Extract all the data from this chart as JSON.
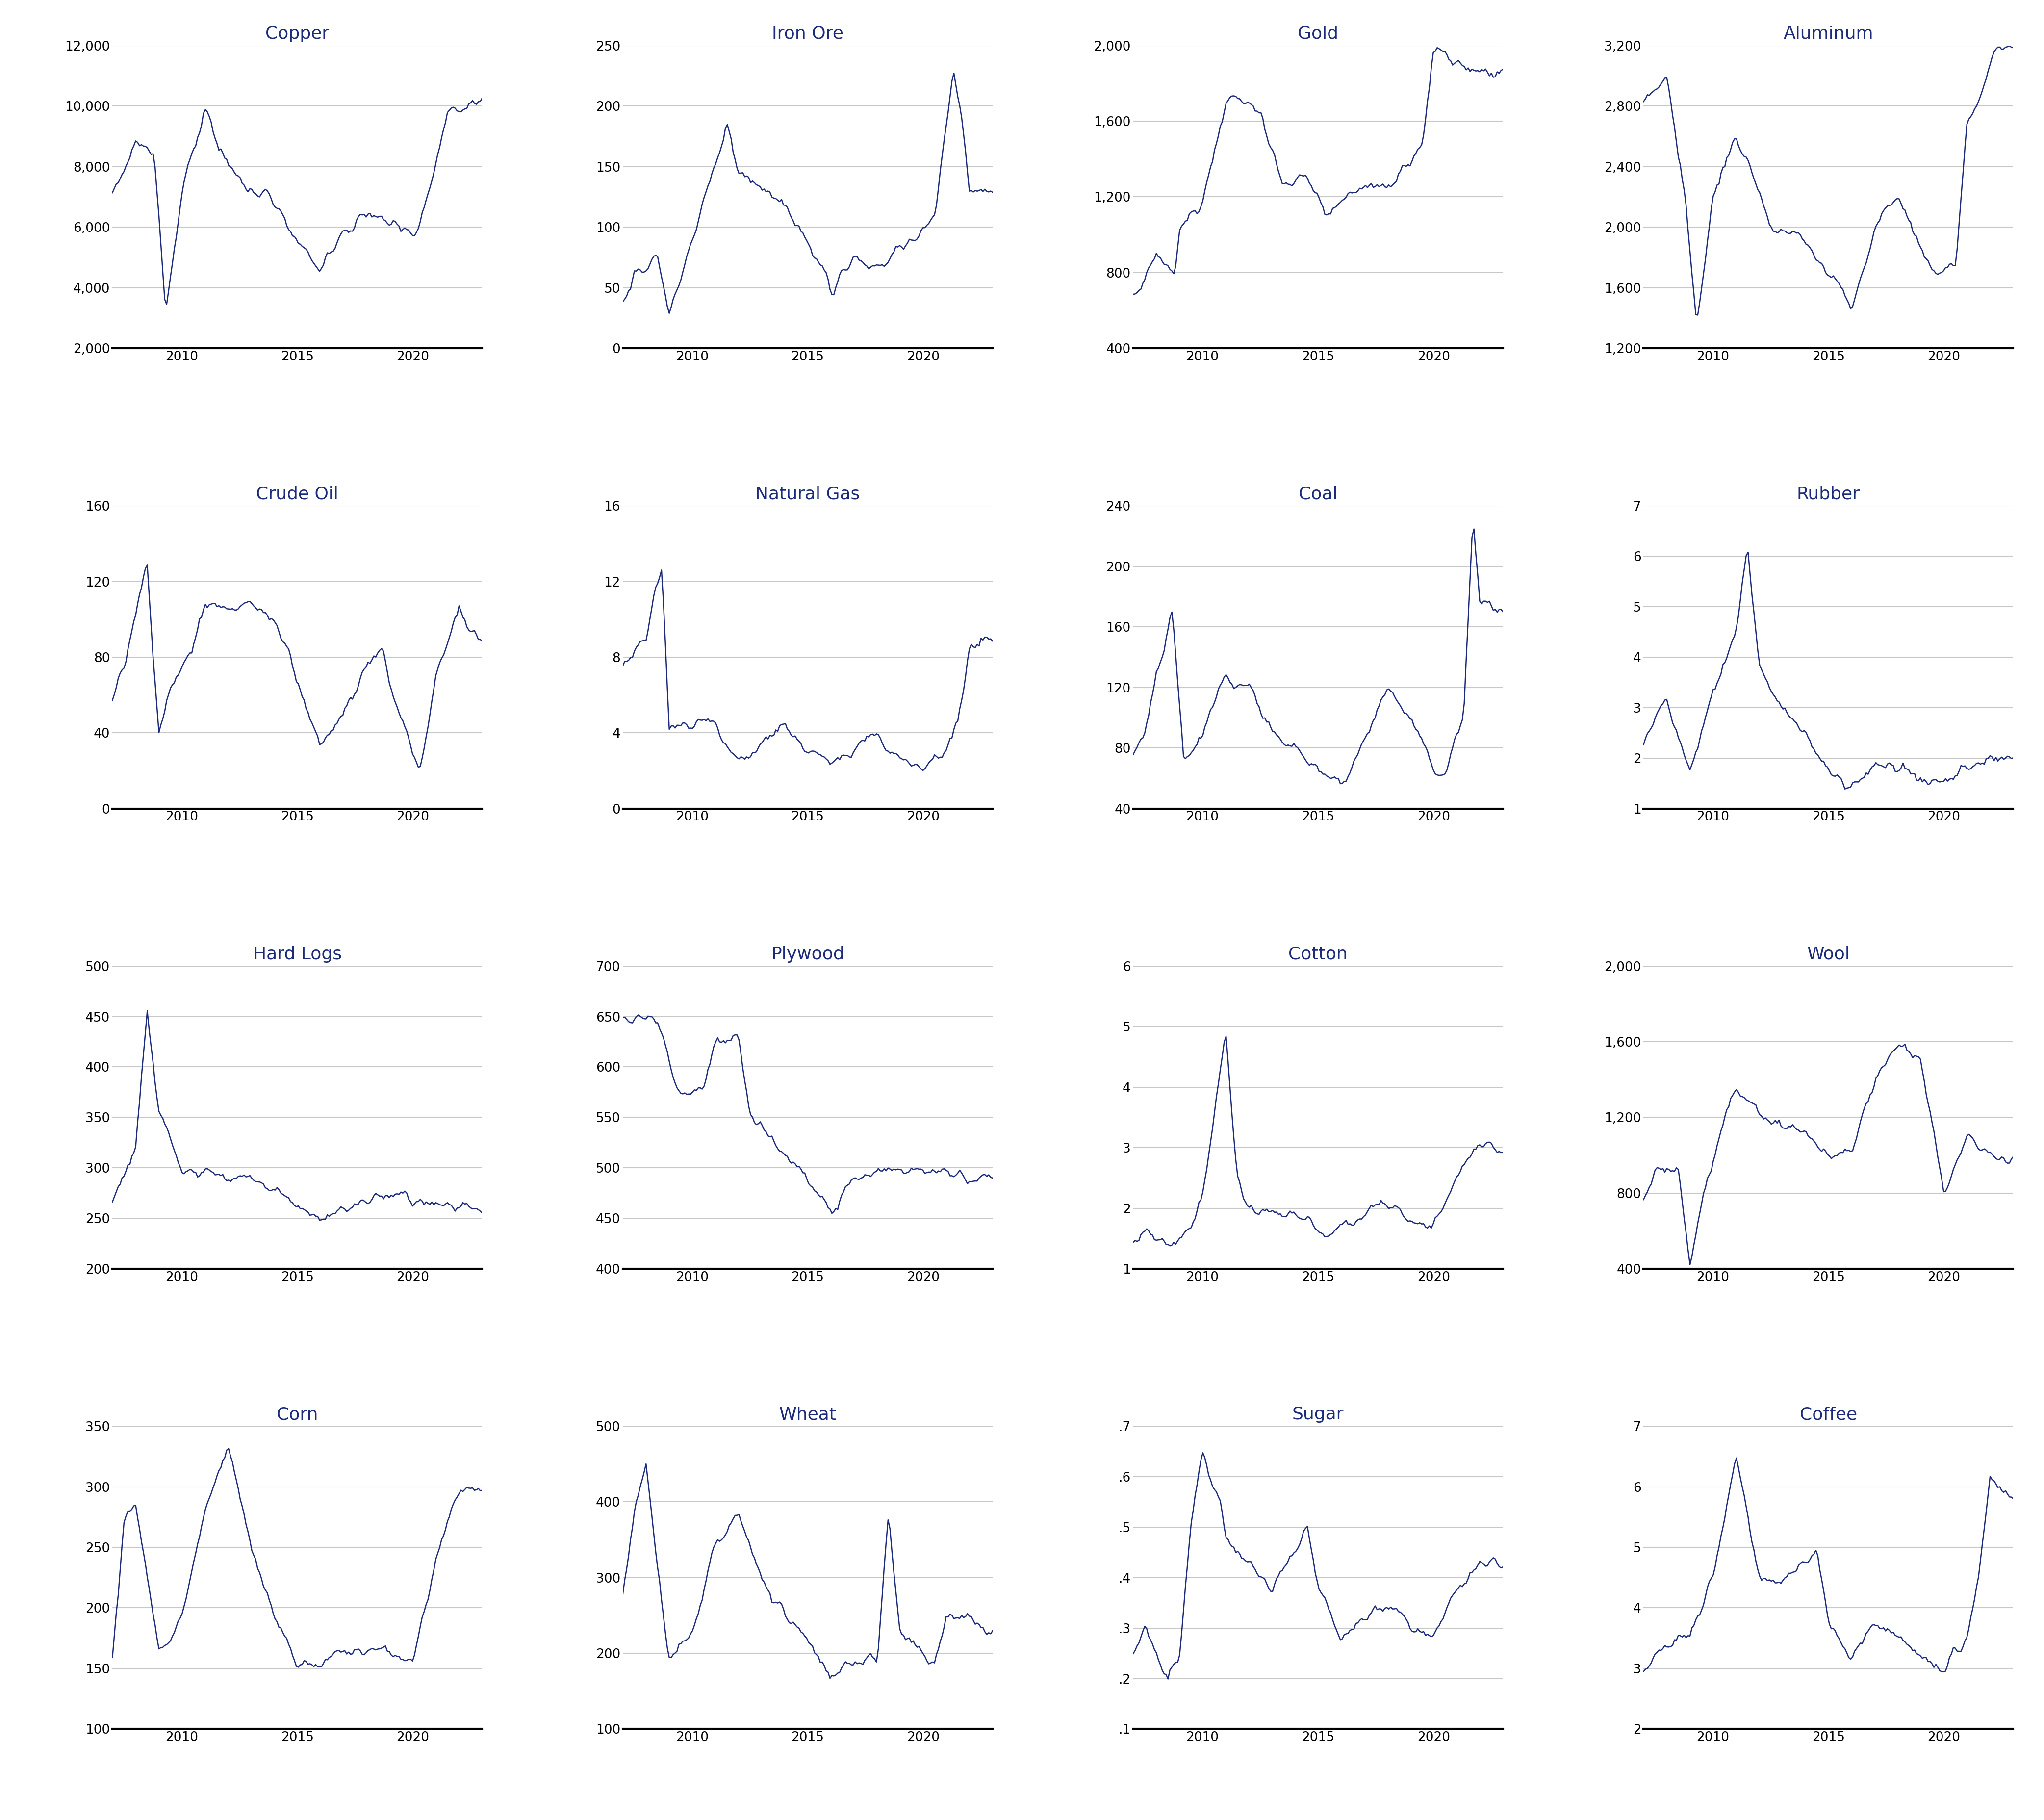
{
  "line_color": "#1b2a7b",
  "grid_color": "#c8c8c8",
  "title_color": "#1b2a7b",
  "bg_color": "#ffffff",
  "subplots": [
    {
      "title": "Copper",
      "yticks": [
        2000,
        4000,
        6000,
        8000,
        10000,
        12000
      ],
      "ylim": [
        2000,
        12000
      ],
      "ytick_labels": [
        "2,000",
        "4,000",
        "6,000",
        "8,000",
        "10,000",
        "12,000"
      ],
      "knots_x": [
        2007.0,
        2007.5,
        2008.0,
        2008.8,
        2009.3,
        2010.0,
        2011.0,
        2011.5,
        2012.0,
        2013.0,
        2014.0,
        2015.0,
        2016.0,
        2017.0,
        2018.0,
        2019.0,
        2020.0,
        2020.5,
        2021.5,
        2022.5,
        2023.0
      ],
      "knots_y": [
        7000,
        7800,
        8800,
        8500,
        3200,
        7000,
        10000,
        8800,
        8000,
        7200,
        6800,
        5500,
        4600,
        5800,
        6400,
        6100,
        5800,
        6500,
        9800,
        10000,
        10200
      ]
    },
    {
      "title": "Iron Ore",
      "yticks": [
        0,
        50,
        100,
        150,
        200,
        250
      ],
      "ylim": [
        0,
        250
      ],
      "ytick_labels": [
        "0",
        "50",
        "100",
        "150",
        "200",
        "250"
      ],
      "knots_x": [
        2007.0,
        2007.5,
        2008.5,
        2009.0,
        2009.5,
        2011.5,
        2012.0,
        2013.0,
        2014.0,
        2015.5,
        2016.0,
        2017.0,
        2018.0,
        2019.0,
        2019.5,
        2020.5,
        2021.3,
        2021.7,
        2022.0,
        2023.0
      ],
      "knots_y": [
        35,
        60,
        75,
        30,
        60,
        185,
        145,
        135,
        120,
        70,
        45,
        75,
        65,
        85,
        90,
        110,
        230,
        185,
        130,
        130
      ]
    },
    {
      "title": "Gold",
      "yticks": [
        400,
        800,
        1200,
        1600,
        2000
      ],
      "ylim": [
        400,
        2000
      ],
      "ytick_labels": [
        "400",
        "800",
        "1,200",
        "1,600",
        "2,000"
      ],
      "knots_x": [
        2007.0,
        2007.5,
        2008.0,
        2008.8,
        2009.0,
        2010.0,
        2011.0,
        2012.0,
        2012.5,
        2013.5,
        2014.5,
        2015.5,
        2016.0,
        2017.0,
        2018.0,
        2019.0,
        2019.5,
        2020.0,
        2020.5,
        2022.0,
        2022.5,
        2023.0
      ],
      "knots_y": [
        680,
        750,
        900,
        800,
        1000,
        1200,
        1700,
        1700,
        1650,
        1250,
        1300,
        1100,
        1200,
        1250,
        1250,
        1400,
        1500,
        1950,
        1950,
        1850,
        1850,
        1860
      ]
    },
    {
      "title": "Aluminum",
      "yticks": [
        1200,
        1600,
        2000,
        2400,
        2800,
        3200
      ],
      "ylim": [
        1200,
        3200
      ],
      "ytick_labels": [
        "1,200",
        "1,600",
        "2,000",
        "2,400",
        "2,800",
        "3,200"
      ],
      "knots_x": [
        2007.0,
        2007.5,
        2008.0,
        2008.8,
        2009.3,
        2010.0,
        2011.0,
        2011.5,
        2012.5,
        2014.0,
        2015.5,
        2016.0,
        2017.0,
        2018.0,
        2019.0,
        2019.5,
        2020.5,
        2021.0,
        2021.5,
        2022.3,
        2023.0
      ],
      "knots_y": [
        2800,
        2900,
        3000,
        2200,
        1350,
        2200,
        2600,
        2450,
        2000,
        1900,
        1600,
        1450,
        2000,
        2200,
        1850,
        1700,
        1750,
        2700,
        2800,
        3200,
        3200
      ]
    },
    {
      "title": "Crude Oil",
      "yticks": [
        0,
        40,
        80,
        120,
        160
      ],
      "ylim": [
        0,
        160
      ],
      "ytick_labels": [
        "0",
        "40",
        "80",
        "120",
        "160"
      ],
      "knots_x": [
        2007.0,
        2007.5,
        2008.5,
        2009.0,
        2009.5,
        2010.5,
        2011.0,
        2012.0,
        2013.0,
        2014.0,
        2014.8,
        2016.0,
        2017.0,
        2018.0,
        2018.7,
        2019.0,
        2020.0,
        2020.3,
        2021.0,
        2022.0,
        2022.5,
        2023.0
      ],
      "knots_y": [
        60,
        75,
        130,
        40,
        65,
        85,
        110,
        105,
        108,
        100,
        75,
        32,
        50,
        75,
        85,
        65,
        30,
        18,
        70,
        105,
        90,
        88
      ]
    },
    {
      "title": "Natural Gas",
      "yticks": [
        0,
        4,
        8,
        12,
        16
      ],
      "ylim": [
        0,
        16
      ],
      "ytick_labels": [
        "0",
        "4",
        "8",
        "12",
        "16"
      ],
      "knots_x": [
        2007.0,
        2007.5,
        2008.0,
        2008.7,
        2009.0,
        2010.0,
        2011.0,
        2012.0,
        2013.0,
        2014.0,
        2015.0,
        2016.0,
        2017.0,
        2018.0,
        2019.0,
        2020.0,
        2021.0,
        2021.5,
        2022.0,
        2022.5,
        2023.0
      ],
      "knots_y": [
        7.5,
        8.5,
        9.0,
        13.0,
        4.5,
        4.5,
        4.5,
        2.5,
        3.5,
        4.5,
        3.0,
        2.5,
        3.0,
        4.0,
        2.5,
        2.0,
        3.0,
        4.5,
        8.5,
        9.0,
        9.0
      ]
    },
    {
      "title": "Coal",
      "yticks": [
        40,
        80,
        120,
        160,
        200,
        240
      ],
      "ylim": [
        40,
        240
      ],
      "ytick_labels": [
        "40",
        "80",
        "120",
        "160",
        "200",
        "240"
      ],
      "knots_x": [
        2007.0,
        2007.5,
        2008.0,
        2008.7,
        2009.2,
        2010.0,
        2011.0,
        2011.5,
        2012.0,
        2013.0,
        2014.0,
        2015.0,
        2016.0,
        2017.0,
        2018.0,
        2019.0,
        2020.0,
        2020.5,
        2021.3,
        2021.7,
        2022.0,
        2023.0
      ],
      "knots_y": [
        75,
        90,
        130,
        170,
        70,
        90,
        130,
        120,
        120,
        90,
        80,
        65,
        55,
        85,
        120,
        100,
        65,
        60,
        100,
        235,
        175,
        170
      ]
    },
    {
      "title": "Rubber",
      "yticks": [
        1,
        2,
        3,
        4,
        5,
        6,
        7
      ],
      "ylim": [
        1,
        7
      ],
      "ytick_labels": [
        "1",
        "2",
        "3",
        "4",
        "5",
        "6",
        "7"
      ],
      "knots_x": [
        2007.0,
        2007.5,
        2008.0,
        2008.5,
        2009.0,
        2010.0,
        2011.0,
        2011.5,
        2012.0,
        2013.0,
        2014.0,
        2015.0,
        2016.0,
        2017.0,
        2018.0,
        2019.0,
        2020.0,
        2021.0,
        2022.0,
        2023.0
      ],
      "knots_y": [
        2.2,
        2.8,
        3.2,
        2.5,
        1.8,
        3.2,
        4.5,
        6.2,
        3.8,
        3.0,
        2.5,
        1.8,
        1.4,
        1.9,
        1.8,
        1.6,
        1.5,
        1.8,
        2.0,
        2.0
      ]
    },
    {
      "title": "Hard Logs",
      "yticks": [
        200,
        250,
        300,
        350,
        400,
        450,
        500
      ],
      "ylim": [
        200,
        500
      ],
      "ytick_labels": [
        "200",
        "250",
        "300",
        "350",
        "400",
        "450",
        "500"
      ],
      "knots_x": [
        2007.0,
        2007.5,
        2008.0,
        2008.5,
        2009.0,
        2010.0,
        2011.0,
        2012.0,
        2013.0,
        2014.0,
        2015.0,
        2016.0,
        2017.0,
        2018.0,
        2019.0,
        2020.0,
        2021.0,
        2022.0,
        2023.0
      ],
      "knots_y": [
        265,
        290,
        320,
        455,
        355,
        300,
        295,
        290,
        295,
        275,
        265,
        250,
        258,
        268,
        275,
        268,
        265,
        260,
        258
      ]
    },
    {
      "title": "Plywood",
      "yticks": [
        400,
        450,
        500,
        550,
        600,
        650,
        700
      ],
      "ylim": [
        400,
        700
      ],
      "ytick_labels": [
        "400",
        "450",
        "500",
        "550",
        "600",
        "650",
        "700"
      ],
      "knots_x": [
        2007.0,
        2007.5,
        2008.0,
        2008.5,
        2009.5,
        2010.5,
        2011.0,
        2012.0,
        2012.5,
        2013.0,
        2014.0,
        2015.0,
        2016.0,
        2017.0,
        2018.0,
        2019.0,
        2020.0,
        2021.0,
        2022.0,
        2023.0
      ],
      "knots_y": [
        648,
        648,
        648,
        645,
        570,
        580,
        625,
        625,
        555,
        540,
        510,
        490,
        455,
        490,
        500,
        498,
        495,
        495,
        490,
        488
      ]
    },
    {
      "title": "Cotton",
      "yticks": [
        1,
        2,
        3,
        4,
        5,
        6
      ],
      "ylim": [
        1,
        6
      ],
      "ytick_labels": [
        "1",
        "2",
        "3",
        "4",
        "5",
        "6"
      ],
      "knots_x": [
        2007.0,
        2007.5,
        2008.0,
        2008.5,
        2009.0,
        2009.5,
        2010.0,
        2010.5,
        2011.0,
        2011.5,
        2012.0,
        2013.0,
        2014.0,
        2015.0,
        2016.0,
        2017.0,
        2018.0,
        2019.0,
        2020.0,
        2021.0,
        2022.0,
        2022.5,
        2023.0
      ],
      "knots_y": [
        1.5,
        1.6,
        1.5,
        1.4,
        1.5,
        1.7,
        2.2,
        3.5,
        4.9,
        2.5,
        2.0,
        1.9,
        1.9,
        1.6,
        1.7,
        1.9,
        2.1,
        1.8,
        1.7,
        2.5,
        3.0,
        3.0,
        2.9
      ]
    },
    {
      "title": "Wool",
      "yticks": [
        400,
        800,
        1200,
        1600,
        2000
      ],
      "ylim": [
        400,
        2000
      ],
      "ytick_labels": [
        "400",
        "800",
        "1,200",
        "1,600",
        "2,000"
      ],
      "knots_x": [
        2007.0,
        2007.5,
        2008.5,
        2009.0,
        2009.5,
        2010.5,
        2011.0,
        2012.0,
        2013.0,
        2014.0,
        2015.0,
        2016.0,
        2017.0,
        2017.5,
        2018.0,
        2019.0,
        2020.0,
        2021.0,
        2022.0,
        2023.0
      ],
      "knots_y": [
        750,
        900,
        950,
        430,
        760,
        1200,
        1350,
        1200,
        1150,
        1100,
        1000,
        1000,
        1400,
        1500,
        1600,
        1500,
        800,
        1100,
        1000,
        980
      ]
    },
    {
      "title": "Corn",
      "yticks": [
        100,
        150,
        200,
        250,
        300,
        350
      ],
      "ylim": [
        100,
        350
      ],
      "ytick_labels": [
        "100",
        "150",
        "200",
        "250",
        "300",
        "350"
      ],
      "knots_x": [
        2007.0,
        2007.5,
        2008.0,
        2008.5,
        2009.0,
        2010.0,
        2011.0,
        2012.0,
        2012.5,
        2013.0,
        2014.0,
        2015.0,
        2016.0,
        2017.0,
        2018.0,
        2019.0,
        2020.0,
        2021.0,
        2021.5,
        2022.0,
        2022.5,
        2023.0
      ],
      "knots_y": [
        160,
        275,
        290,
        225,
        165,
        190,
        280,
        335,
        295,
        250,
        195,
        155,
        150,
        165,
        165,
        165,
        155,
        240,
        270,
        295,
        300,
        295
      ]
    },
    {
      "title": "Wheat",
      "yticks": [
        100,
        200,
        300,
        400,
        500
      ],
      "ylim": [
        100,
        500
      ],
      "ytick_labels": [
        "100",
        "200",
        "300",
        "400",
        "500"
      ],
      "knots_x": [
        2007.0,
        2007.5,
        2008.0,
        2008.5,
        2009.0,
        2010.0,
        2011.0,
        2012.0,
        2012.5,
        2013.0,
        2014.0,
        2015.0,
        2016.0,
        2017.0,
        2018.0,
        2018.5,
        2019.0,
        2020.0,
        2020.5,
        2021.0,
        2021.5,
        2022.0,
        2022.5,
        2023.0
      ],
      "knots_y": [
        280,
        380,
        450,
        310,
        195,
        230,
        340,
        380,
        340,
        295,
        250,
        220,
        165,
        185,
        195,
        380,
        230,
        195,
        185,
        245,
        250,
        250,
        235,
        235
      ]
    },
    {
      "title": "Sugar",
      "yticks": [
        0.1,
        0.2,
        0.3,
        0.4,
        0.5,
        0.6,
        0.7
      ],
      "ylim": [
        0.1,
        0.7
      ],
      "ytick_labels": [
        ".1",
        ".2",
        ".3",
        ".4",
        ".5",
        ".6",
        ".7"
      ],
      "knots_x": [
        2007.0,
        2007.5,
        2008.0,
        2008.5,
        2009.0,
        2009.5,
        2010.0,
        2010.3,
        2010.8,
        2011.0,
        2011.5,
        2012.5,
        2013.0,
        2014.0,
        2014.5,
        2015.0,
        2016.0,
        2017.0,
        2018.0,
        2019.0,
        2020.0,
        2021.0,
        2022.0,
        2022.5,
        2023.0
      ],
      "knots_y": [
        0.25,
        0.3,
        0.25,
        0.2,
        0.25,
        0.5,
        0.65,
        0.6,
        0.55,
        0.48,
        0.45,
        0.4,
        0.38,
        0.45,
        0.5,
        0.38,
        0.28,
        0.32,
        0.35,
        0.3,
        0.28,
        0.38,
        0.43,
        0.43,
        0.43
      ]
    },
    {
      "title": "Coffee",
      "yticks": [
        2,
        3,
        4,
        5,
        6,
        7
      ],
      "ylim": [
        2,
        7
      ],
      "ytick_labels": [
        "2",
        "3",
        "4",
        "5",
        "6",
        "7"
      ],
      "knots_x": [
        2007.0,
        2007.5,
        2008.5,
        2009.0,
        2010.0,
        2011.0,
        2011.5,
        2012.0,
        2013.0,
        2014.0,
        2014.5,
        2015.0,
        2016.0,
        2017.0,
        2018.0,
        2019.0,
        2020.0,
        2021.0,
        2021.5,
        2022.0,
        2022.5,
        2023.0
      ],
      "knots_y": [
        3.0,
        3.2,
        3.5,
        3.5,
        4.5,
        6.5,
        5.5,
        4.5,
        4.5,
        4.8,
        5.0,
        3.8,
        3.2,
        3.8,
        3.5,
        3.2,
        3.0,
        3.5,
        4.5,
        6.2,
        6.0,
        5.9
      ]
    }
  ]
}
